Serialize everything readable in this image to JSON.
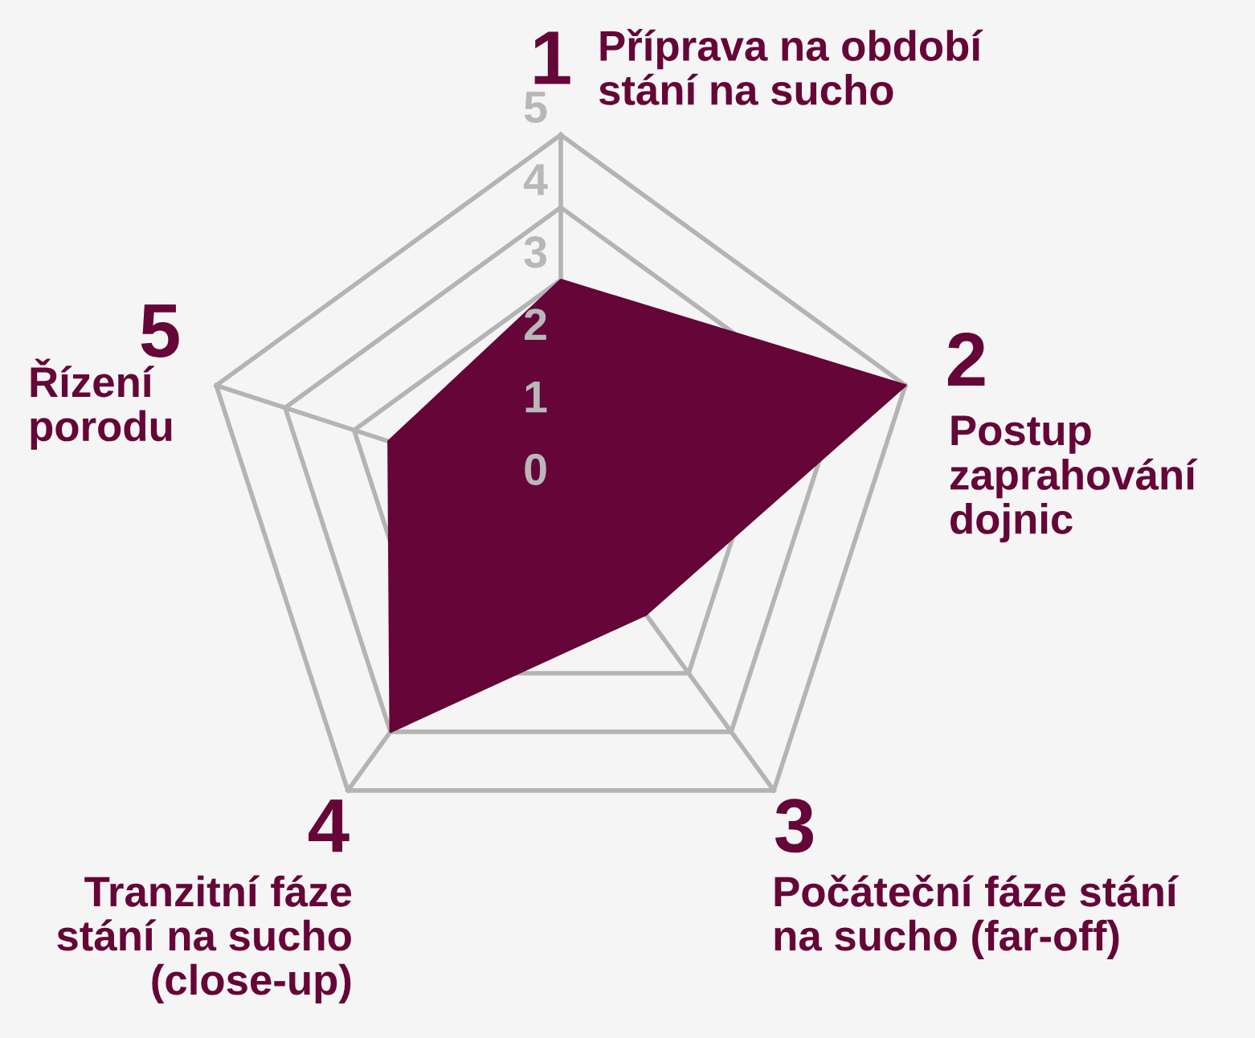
{
  "chart_data": {
    "type": "radar",
    "categories": [
      "Příprava na období\nstání na sucho",
      "Postup\nzaprahování\ndojnic",
      "Počáteční fáze stání\nna sucho (far-off)",
      "Tranzitní fáze\nstání na sucho\n(close-up)",
      "Řízení\nporodu"
    ],
    "annotations": [
      "1",
      "2",
      "3",
      "4",
      "5"
    ],
    "series": [
      {
        "color": "#650538",
        "values": [
          3,
          5,
          2,
          4,
          2.5
        ]
      }
    ],
    "ylim": [
      0,
      5
    ],
    "yticks": [
      0,
      1,
      2,
      3,
      4,
      5
    ],
    "grid": true
  }
}
